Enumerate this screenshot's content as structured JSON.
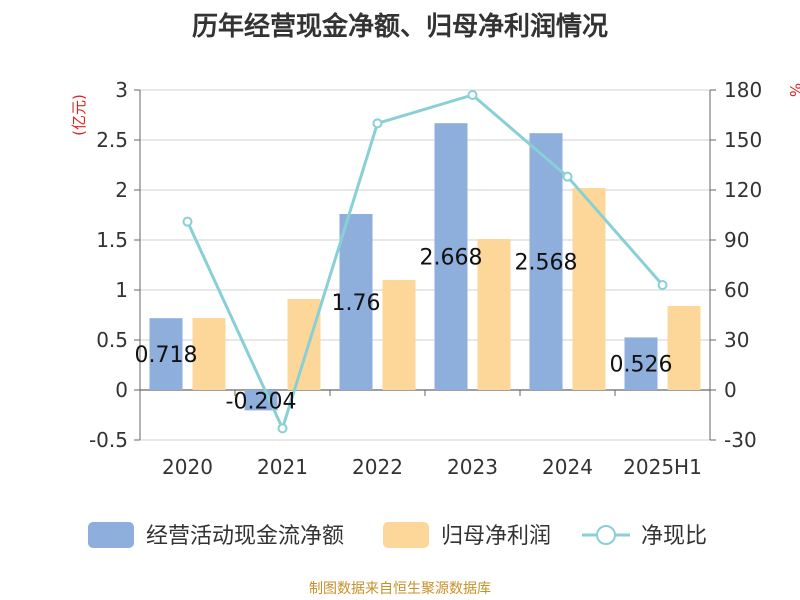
{
  "title": "历年经营现金净额、归母净利润情况",
  "source": "制图数据来自恒生聚源数据库",
  "chart_data": {
    "type": "bar",
    "categories": [
      "2020",
      "2021",
      "2022",
      "2023",
      "2024",
      "2025H1"
    ],
    "series": [
      {
        "name": "经营活动现金流净额",
        "type": "bar",
        "axis": "left",
        "color": "#8eaedc",
        "values": [
          0.718,
          -0.204,
          1.76,
          2.668,
          2.568,
          0.526
        ],
        "labels": [
          "0.718",
          "-0.204",
          "1.76",
          "2.668",
          "2.568",
          "0.526"
        ]
      },
      {
        "name": "归母净利润",
        "type": "bar",
        "axis": "left",
        "color": "#fdd79a",
        "values": [
          0.72,
          0.91,
          1.1,
          1.51,
          2.02,
          0.84
        ]
      },
      {
        "name": "净现比",
        "type": "line",
        "axis": "right",
        "color": "#88d0d6",
        "values": [
          101,
          -23,
          160,
          177,
          128,
          63
        ]
      }
    ],
    "y_left": {
      "label": "(亿元)",
      "min": -0.5,
      "max": 3,
      "ticks": [
        "-0.5",
        "0",
        "0.5",
        "1",
        "1.5",
        "2",
        "2.5",
        "3"
      ]
    },
    "y_right": {
      "label": "%",
      "min": -30,
      "max": 180,
      "ticks": [
        "-30",
        "0",
        "30",
        "60",
        "90",
        "120",
        "150",
        "180"
      ]
    },
    "grid": true,
    "legend_position": "bottom"
  }
}
